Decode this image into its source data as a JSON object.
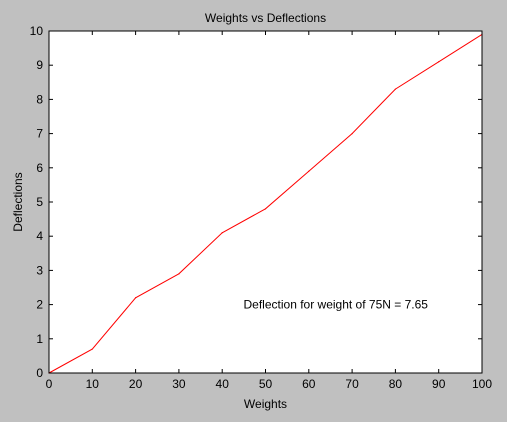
{
  "chart_data": {
    "type": "line",
    "title": "Weights vs Deflections",
    "xlabel": "Weights",
    "ylabel": "Deflections",
    "xlim": [
      0,
      100
    ],
    "ylim": [
      0,
      10
    ],
    "xticks": [
      "0",
      "10",
      "20",
      "30",
      "40",
      "50",
      "60",
      "70",
      "80",
      "90",
      "100"
    ],
    "yticks": [
      "0",
      "1",
      "2",
      "3",
      "4",
      "5",
      "6",
      "7",
      "8",
      "9",
      "10"
    ],
    "grid": false,
    "series": [
      {
        "color": "#ff0000",
        "x": [
          0,
          10,
          20,
          30,
          40,
          50,
          60,
          70,
          80,
          90,
          100
        ],
        "y": [
          0,
          0.7,
          2.2,
          2.9,
          4.1,
          4.8,
          5.9,
          7.0,
          8.3,
          9.1,
          9.9
        ]
      }
    ],
    "annotation": "Deflection for weight of 75N = 7.65",
    "annotation_at": [
      50,
      2
    ]
  },
  "colors": {
    "figure_background": "#c0c0c0",
    "axes_background": "#ffffff",
    "line": "#ff0000"
  }
}
